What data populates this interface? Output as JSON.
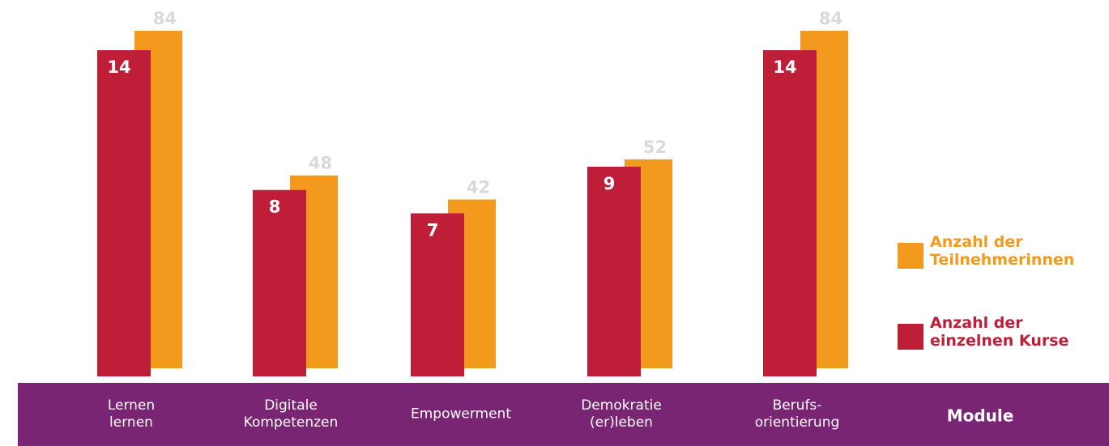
{
  "chart_data": {
    "type": "bar",
    "categories": [
      "Lernen\nlernen",
      "Digitale\nKompetenzen",
      "Empowerment",
      "Demokratie\n(er)leben",
      "Berufs-\norientierung"
    ],
    "x_label": "Module",
    "series": [
      {
        "name": "Anzahl der\nTeilnehmerinnen",
        "color": "#f39a1e",
        "label_color": "#d9d9d9",
        "values": [
          84,
          48,
          42,
          52,
          84
        ]
      },
      {
        "name": "Anzahl der\neinzelnen Kurse",
        "color": "#be1e37",
        "label_color": "#ffffff",
        "values": [
          14,
          8,
          7,
          9,
          14
        ]
      }
    ],
    "band_color": "#7a2474"
  }
}
